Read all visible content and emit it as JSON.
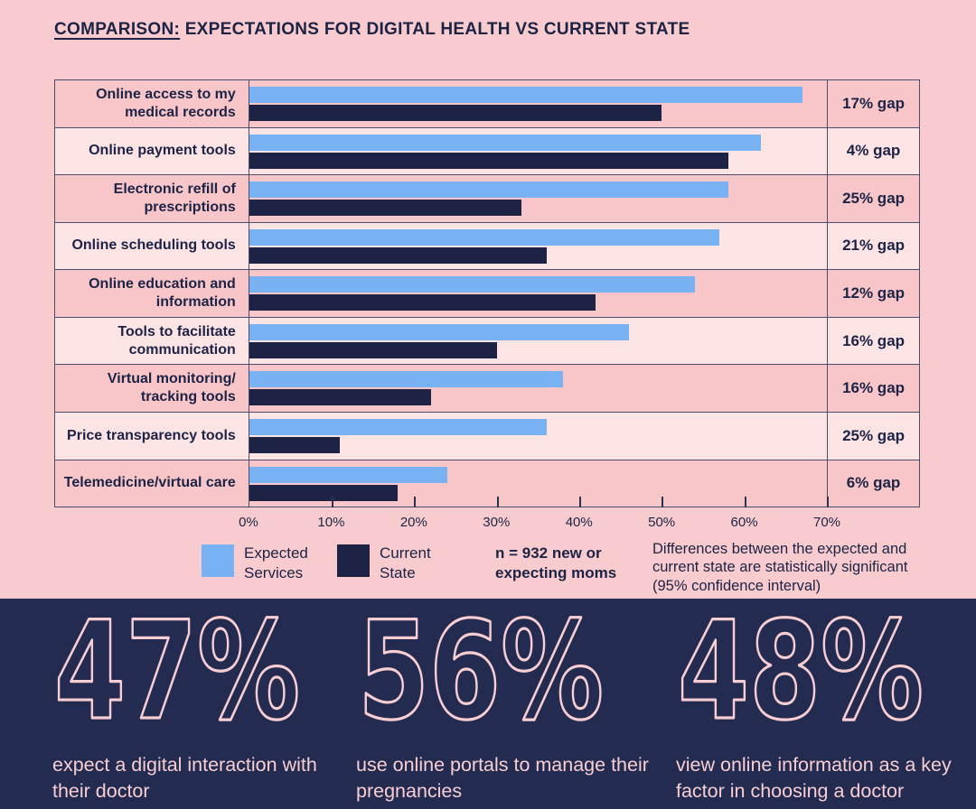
{
  "title": {
    "prefix": "COMPARISON:",
    "rest": " EXPECTATIONS FOR DIGITAL HEALTH VS CURRENT STATE"
  },
  "colors": {
    "page_background": "#f8cbce",
    "row_odd": "#f8c6c9",
    "row_even": "#fce4e5",
    "expected_bar": "#79b2f2",
    "current_bar": "#1c2345",
    "navy_text": "#1c2345",
    "bottom_background": "#232b51",
    "bottom_accent": "#f8ced3",
    "grid_border": "#4a4e6d"
  },
  "chart_data": {
    "type": "bar",
    "orientation": "horizontal",
    "title": "COMPARISON: EXPECTATIONS FOR DIGITAL HEALTH VS CURRENT STATE",
    "categories": [
      "Online access to my medical records",
      "Online payment tools",
      "Electronic refill of prescriptions",
      "Online scheduling tools",
      "Online education and information",
      "Tools to facilitate communication",
      "Virtual monitoring/ tracking tools",
      "Price transparency tools",
      "Telemedicine/virtual care"
    ],
    "series": [
      {
        "name": "Expected Services",
        "values": [
          67,
          62,
          58,
          57,
          54,
          46,
          38,
          36,
          24
        ]
      },
      {
        "name": "Current State",
        "values": [
          50,
          58,
          33,
          36,
          42,
          30,
          22,
          11,
          18
        ]
      }
    ],
    "gap_labels": [
      "17% gap",
      "4% gap",
      "25% gap",
      "21% gap",
      "12% gap",
      "16% gap",
      "16% gap",
      "25% gap",
      "6% gap"
    ],
    "x_ticks": [
      "0%",
      "10%",
      "20%",
      "30%",
      "40%",
      "50%",
      "60%",
      "70%"
    ],
    "xlim": [
      0,
      70
    ],
    "legend_position": "bottom",
    "grid": false
  },
  "legend": {
    "expected_label": "Expected Services",
    "current_label": "Current State"
  },
  "notes": {
    "sample": "n = 932 new or expecting moms",
    "significance": "Differences between the expected and current state are statistically significant (95% confidence interval)"
  },
  "stats": [
    {
      "value": "47%",
      "caption": "expect a digital interaction with their doctor"
    },
    {
      "value": "56%",
      "caption": "use online portals to manage their pregnancies"
    },
    {
      "value": "48%",
      "caption": "view online information as a key factor in choosing a doctor"
    }
  ]
}
